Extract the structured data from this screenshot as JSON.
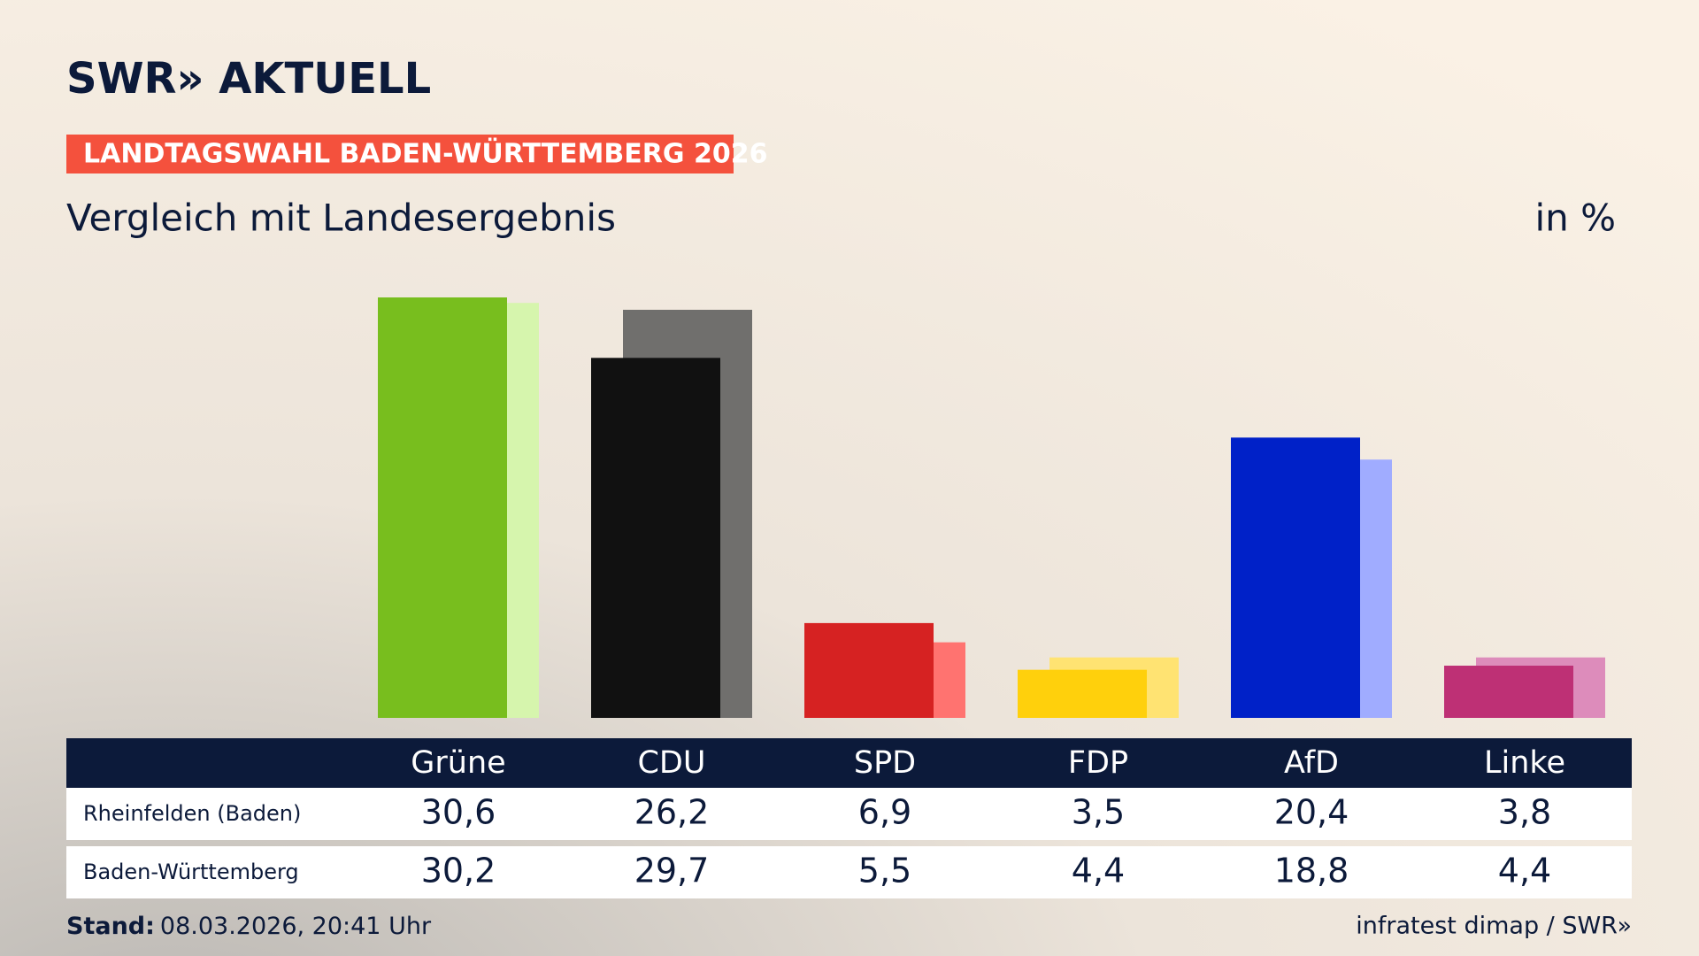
{
  "header": {
    "brand": "SWR» AKTUELL",
    "kicker": "LANDTAGSWAHL BADEN-WÜRTTEMBERG 2026"
  },
  "chart_data": {
    "type": "bar",
    "title": "Vergleich mit Landesergebnis",
    "unit_label": "in %",
    "categories": [
      "Grüne",
      "CDU",
      "SPD",
      "FDP",
      "AfD",
      "Linke"
    ],
    "series": [
      {
        "name": "Rheinfelden (Baden)",
        "colors": [
          "#78be1e",
          "#111111",
          "#d62222",
          "#ffd00c",
          "#0021c8",
          "#be3075"
        ],
        "values": [
          30.6,
          26.2,
          6.9,
          3.5,
          20.4,
          3.8
        ],
        "value_labels": [
          "30,6",
          "26,2",
          "6,9",
          "3,5",
          "20,4",
          "3,8"
        ]
      },
      {
        "name": "Baden-Württemberg",
        "colors": [
          "#d6f5ad",
          "#706f6d",
          "#ff7370",
          "#ffe372",
          "#a0acff",
          "#dd8cbb"
        ],
        "values": [
          30.2,
          29.7,
          5.5,
          4.4,
          18.8,
          4.4
        ],
        "value_labels": [
          "30,2",
          "29,7",
          "5,5",
          "4,4",
          "18,8",
          "4,4"
        ]
      }
    ]
  },
  "footer": {
    "stand_label": "Stand:",
    "stand_value": "08.03.2026, 20:41 Uhr",
    "source": "infratest dimap / SWR»"
  }
}
